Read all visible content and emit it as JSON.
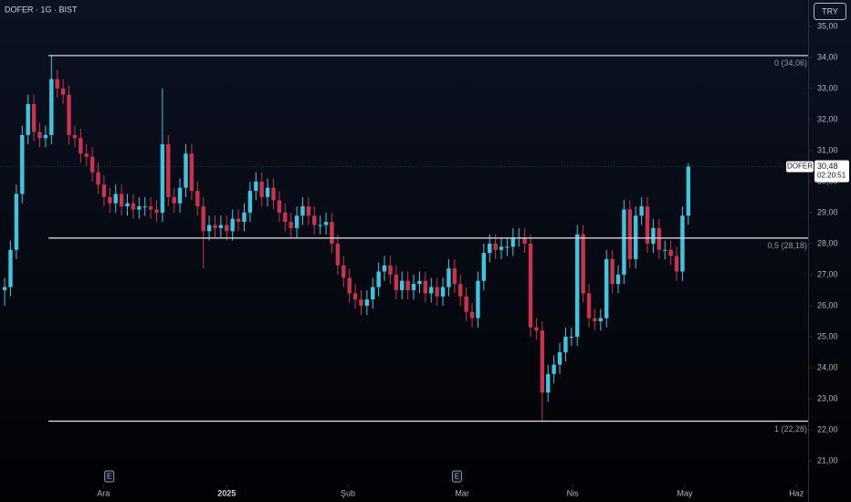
{
  "chart_data": {
    "type": "candlestick",
    "title": "DOFER · 1G · BIST",
    "currency": "TRY",
    "up_color": "#3fc6dc",
    "down_color": "#c8344e",
    "xlim": [
      -0.8,
      137.5
    ],
    "xticks": [
      {
        "value": 16.9,
        "label": "Ara"
      },
      {
        "value": 38,
        "label": "2025"
      },
      {
        "value": 58.75,
        "label": "Şub"
      },
      {
        "value": 78.3,
        "label": "Mar"
      },
      {
        "value": 97.2,
        "label": "Nis"
      },
      {
        "value": 116.4,
        "label": "May"
      },
      {
        "value": 135.5,
        "label": "Haz"
      }
    ],
    "ylim": [
      20.41,
      35.85
    ],
    "yticks": [
      {
        "value": 21,
        "label": "21,00"
      },
      {
        "value": 22,
        "label": "22,00"
      },
      {
        "value": 23,
        "label": "23,00"
      },
      {
        "value": 24,
        "label": "24,00"
      },
      {
        "value": 25,
        "label": "25,00"
      },
      {
        "value": 26,
        "label": "26,00"
      },
      {
        "value": 27,
        "label": "27,00"
      },
      {
        "value": 28,
        "label": "28,00"
      },
      {
        "value": 29,
        "label": "29,00"
      },
      {
        "value": 30,
        "label": "30,00"
      },
      {
        "value": 31,
        "label": "31,00"
      },
      {
        "value": 32,
        "label": "32,00"
      },
      {
        "value": 33,
        "label": "33,00"
      },
      {
        "value": 34,
        "label": "34,00"
      },
      {
        "value": 35,
        "label": "35,00"
      }
    ],
    "levels": [
      {
        "value": 34.06,
        "label": "0 (34,06)"
      },
      {
        "value": 28.18,
        "label": "0,5 (28,18)"
      },
      {
        "value": 22.28,
        "label": "1 (22,28)"
      }
    ],
    "events": [
      {
        "value": 17.9,
        "label": "E"
      },
      {
        "value": 77.4,
        "label": "E"
      }
    ],
    "last_price": {
      "value": 30.48,
      "label": "30,48"
    },
    "symbol_tag": "DOFER",
    "countdown": "02:20:51",
    "open": [
      26.5,
      26.6,
      27.8,
      29.6,
      31.5,
      32.5,
      31.6,
      31.4,
      31.5,
      33.3,
      33.0,
      32.8,
      31.5,
      31.4,
      30.9,
      30.8,
      30.3,
      29.9,
      29.5,
      29.3,
      29.6,
      29.2,
      29.3,
      29.1,
      29.2,
      29.2,
      29.1,
      29.0,
      31.2,
      29.5,
      29.3,
      29.8,
      30.9,
      29.7,
      29.2,
      28.4,
      28.6,
      28.5,
      28.6,
      28.4,
      28.8,
      28.7,
      29.0,
      29.7,
      30.0,
      29.5,
      29.8,
      29.4,
      29.0,
      28.7,
      28.5,
      28.9,
      29.2,
      28.9,
      28.6,
      28.6,
      28.7,
      28.0,
      27.3,
      26.9,
      26.4,
      26.2,
      26.0,
      26.2,
      26.6,
      27.1,
      27.3,
      27.0,
      26.5,
      26.8,
      26.5,
      26.7,
      26.8,
      26.4,
      26.6,
      26.3,
      26.6,
      27.2,
      26.7,
      26.3,
      25.8,
      25.6,
      26.8,
      27.7,
      28.0,
      27.8,
      27.9,
      27.9,
      28.2,
      28.2,
      28.0,
      25.3,
      25.2,
      23.2,
      23.8,
      24.1,
      24.5,
      25.0,
      25.0,
      28.3,
      26.4,
      25.6,
      25.5,
      25.6,
      27.5,
      26.7,
      27.0,
      29.1,
      27.5,
      28.9,
      29.2,
      28.0,
      28.5,
      27.8,
      27.8,
      27.6,
      27.1,
      28.9
    ],
    "high": [
      26.9,
      28.1,
      29.9,
      31.8,
      32.8,
      32.8,
      31.9,
      31.8,
      34.06,
      33.6,
      33.3,
      33.1,
      31.8,
      31.7,
      31.2,
      31.1,
      30.6,
      30.2,
      29.8,
      29.9,
      29.9,
      29.6,
      29.6,
      29.5,
      29.5,
      29.5,
      29.4,
      33.0,
      31.5,
      29.8,
      30.1,
      31.2,
      31.2,
      30.0,
      29.5,
      28.9,
      28.9,
      28.9,
      28.9,
      29.1,
      29.1,
      29.3,
      30.0,
      30.3,
      30.3,
      30.1,
      30.1,
      29.7,
      29.3,
      29.0,
      29.2,
      29.5,
      29.5,
      29.2,
      28.9,
      29.0,
      29.0,
      28.3,
      27.6,
      27.2,
      26.7,
      26.5,
      26.5,
      26.9,
      27.4,
      27.6,
      27.6,
      27.3,
      27.1,
      27.1,
      27.0,
      27.1,
      27.1,
      26.9,
      26.9,
      26.9,
      27.5,
      27.5,
      27.0,
      26.6,
      26.1,
      27.1,
      28.0,
      28.3,
      28.3,
      28.2,
      28.2,
      28.5,
      28.5,
      28.5,
      28.3,
      25.6,
      25.5,
      24.1,
      24.4,
      24.8,
      25.3,
      25.3,
      28.6,
      28.6,
      26.7,
      25.9,
      25.9,
      27.8,
      27.8,
      27.3,
      29.4,
      29.4,
      29.2,
      29.5,
      29.5,
      28.8,
      28.8,
      28.1,
      28.1,
      27.9,
      29.2,
      30.6
    ],
    "low": [
      26.0,
      26.3,
      27.5,
      29.3,
      31.2,
      31.3,
      31.1,
      31.1,
      31.2,
      32.7,
      32.5,
      31.2,
      31.1,
      30.6,
      30.5,
      30.0,
      29.6,
      29.2,
      29.0,
      29.0,
      28.9,
      28.9,
      28.8,
      28.8,
      28.9,
      28.8,
      28.7,
      28.7,
      29.2,
      29.0,
      29.0,
      29.5,
      29.4,
      28.9,
      27.2,
      28.1,
      28.2,
      28.2,
      28.1,
      28.1,
      28.4,
      28.4,
      28.7,
      29.4,
      29.2,
      29.2,
      29.1,
      28.7,
      28.4,
      28.2,
      28.2,
      28.6,
      28.6,
      28.3,
      28.3,
      28.3,
      27.7,
      27.0,
      26.6,
      26.1,
      25.9,
      25.7,
      25.7,
      25.9,
      26.3,
      26.8,
      26.7,
      26.2,
      26.2,
      26.2,
      26.2,
      26.4,
      26.1,
      26.1,
      26.0,
      26.0,
      26.3,
      26.4,
      26.0,
      25.5,
      25.3,
      25.3,
      26.5,
      27.4,
      27.5,
      27.5,
      27.6,
      27.6,
      27.9,
      27.7,
      25.0,
      24.9,
      22.28,
      22.9,
      23.5,
      23.8,
      24.2,
      24.7,
      24.7,
      26.1,
      25.3,
      25.2,
      25.2,
      25.3,
      26.4,
      26.4,
      26.7,
      27.2,
      27.2,
      28.6,
      27.7,
      27.7,
      27.5,
      27.5,
      27.3,
      26.8,
      26.8,
      28.6
    ],
    "close": [
      26.6,
      27.8,
      29.6,
      31.5,
      32.5,
      31.6,
      31.4,
      31.5,
      33.3,
      33.0,
      32.8,
      31.5,
      31.4,
      30.9,
      30.8,
      30.3,
      29.9,
      29.5,
      29.3,
      29.6,
      29.2,
      29.3,
      29.1,
      29.2,
      29.2,
      29.1,
      29.0,
      31.2,
      29.5,
      29.3,
      29.8,
      30.9,
      29.7,
      29.2,
      28.4,
      28.6,
      28.5,
      28.6,
      28.4,
      28.8,
      28.7,
      29.0,
      29.7,
      30.0,
      29.5,
      29.8,
      29.4,
      29.0,
      28.7,
      28.5,
      28.9,
      29.2,
      28.9,
      28.6,
      28.6,
      28.7,
      28.0,
      27.3,
      26.9,
      26.4,
      26.2,
      26.0,
      26.2,
      26.6,
      27.1,
      27.3,
      27.0,
      26.5,
      26.8,
      26.5,
      26.7,
      26.8,
      26.4,
      26.6,
      26.3,
      26.6,
      27.2,
      26.7,
      26.3,
      25.8,
      25.6,
      26.8,
      27.7,
      28.0,
      27.8,
      27.9,
      27.9,
      28.2,
      28.2,
      28.0,
      25.3,
      25.2,
      23.2,
      23.8,
      24.1,
      24.5,
      25.0,
      25.0,
      28.3,
      26.4,
      25.6,
      25.5,
      25.6,
      27.5,
      26.7,
      27.0,
      29.1,
      27.5,
      28.9,
      29.2,
      28.0,
      28.5,
      27.8,
      27.8,
      27.6,
      27.1,
      28.9,
      30.48
    ]
  }
}
